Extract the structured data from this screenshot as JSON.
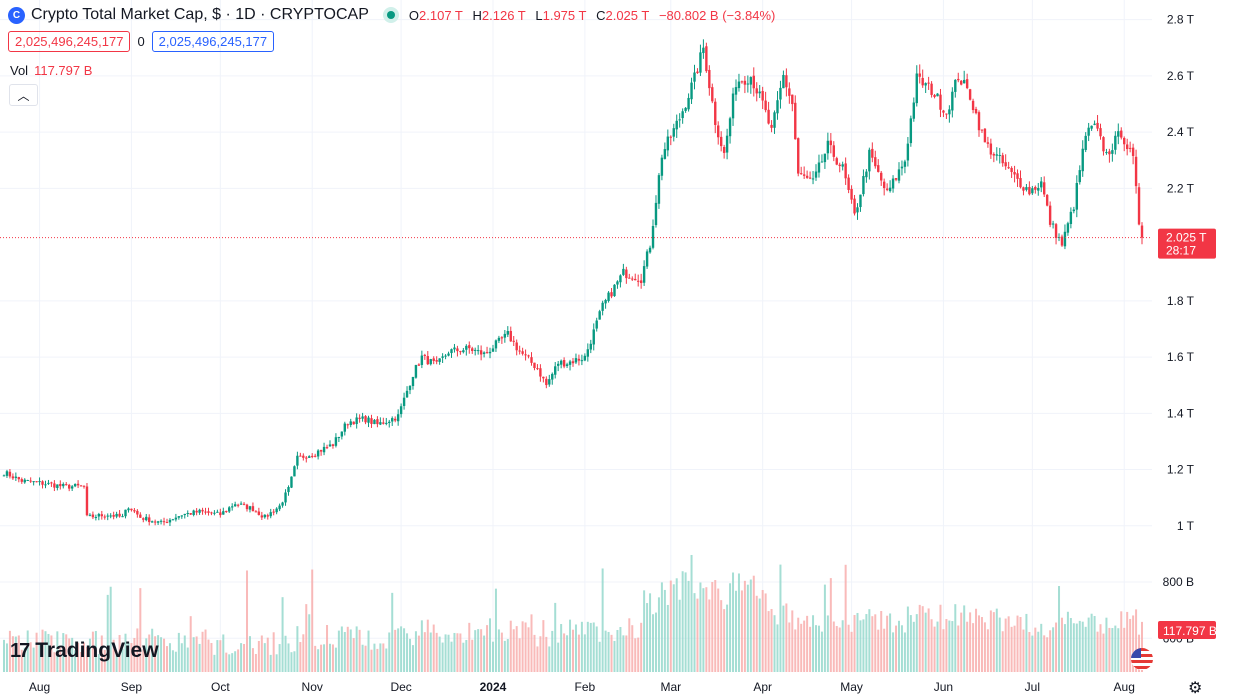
{
  "header": {
    "logo_glyph": "C",
    "title": "Crypto Total Market Cap, $ · 1D · CRYPTOCAP",
    "o_label": "O",
    "o_value": "2.107 T",
    "h_label": "H",
    "h_value": "2.126 T",
    "l_label": "L",
    "l_value": "1.975 T",
    "c_label": "C",
    "c_value": "2.025 T",
    "change": "−80.802 B (−3.84%)"
  },
  "price_boxes": {
    "left": "2,025,496,245,177",
    "middle": "0",
    "right": "2,025,496,245,177"
  },
  "volume": {
    "label": "Vol",
    "value": "117.797 B"
  },
  "branding": {
    "text": "TradingView",
    "mark": "17"
  },
  "colors": {
    "up": "#089981",
    "down": "#f23645",
    "grid": "#f0f3fa",
    "text": "#131722",
    "volume_up": "#8fd6c9",
    "volume_down": "#f7a9a7"
  },
  "chart_data": {
    "type": "candlestick",
    "y_axis": {
      "unit": "T",
      "range": [
        0.48,
        2.87
      ],
      "ticks": [
        {
          "value": 2.8,
          "label": "2.8 T"
        },
        {
          "value": 2.6,
          "label": "2.6 T"
        },
        {
          "value": 2.4,
          "label": "2.4 T"
        },
        {
          "value": 2.2,
          "label": "2.2 T"
        },
        {
          "value": 1.8,
          "label": "1.8 T"
        },
        {
          "value": 1.6,
          "label": "1.6 T"
        },
        {
          "value": 1.4,
          "label": "1.4 T"
        },
        {
          "value": 1.2,
          "label": "1.2 T"
        },
        {
          "value": 1.0,
          "label": "1 T"
        },
        {
          "value": 0.8,
          "label": "800 B"
        },
        {
          "value": 0.6,
          "label": "600 B"
        }
      ]
    },
    "x_axis": {
      "labels": [
        {
          "day": 12,
          "label": "Aug",
          "bold": false
        },
        {
          "day": 43,
          "label": "Sep",
          "bold": false
        },
        {
          "day": 73,
          "label": "Oct",
          "bold": false
        },
        {
          "day": 104,
          "label": "Nov",
          "bold": false
        },
        {
          "day": 134,
          "label": "Dec",
          "bold": false
        },
        {
          "day": 165,
          "label": "2024",
          "bold": true
        },
        {
          "day": 196,
          "label": "Feb",
          "bold": false
        },
        {
          "day": 225,
          "label": "Mar",
          "bold": false
        },
        {
          "day": 256,
          "label": "Apr",
          "bold": false
        },
        {
          "day": 286,
          "label": "May",
          "bold": false
        },
        {
          "day": 317,
          "label": "Jun",
          "bold": false
        },
        {
          "day": 347,
          "label": "Jul",
          "bold": false
        },
        {
          "day": 378,
          "label": "Aug",
          "bold": false
        }
      ]
    },
    "current_price": {
      "value": 2.025,
      "label": "2.025 T",
      "countdown": "28:17"
    },
    "current_volume": {
      "label": "117.797 B"
    },
    "volume_scale": {
      "max": 0.35
    },
    "anchors": [
      [
        0,
        1.19
      ],
      [
        6,
        1.16
      ],
      [
        14,
        1.15
      ],
      [
        20,
        1.14
      ],
      [
        27,
        1.14
      ],
      [
        28,
        1.03
      ],
      [
        35,
        1.04
      ],
      [
        40,
        1.03
      ],
      [
        42,
        1.07
      ],
      [
        46,
        1.03
      ],
      [
        53,
        1.01
      ],
      [
        60,
        1.04
      ],
      [
        66,
        1.05
      ],
      [
        73,
        1.04
      ],
      [
        78,
        1.08
      ],
      [
        84,
        1.06
      ],
      [
        88,
        1.03
      ],
      [
        93,
        1.07
      ],
      [
        96,
        1.13
      ],
      [
        99,
        1.24
      ],
      [
        105,
        1.26
      ],
      [
        111,
        1.29
      ],
      [
        116,
        1.37
      ],
      [
        122,
        1.38
      ],
      [
        126,
        1.36
      ],
      [
        133,
        1.39
      ],
      [
        138,
        1.54
      ],
      [
        141,
        1.6
      ],
      [
        146,
        1.57
      ],
      [
        150,
        1.62
      ],
      [
        157,
        1.63
      ],
      [
        162,
        1.61
      ],
      [
        170,
        1.68
      ],
      [
        174,
        1.62
      ],
      [
        180,
        1.56
      ],
      [
        183,
        1.5
      ],
      [
        187,
        1.58
      ],
      [
        190,
        1.58
      ],
      [
        196,
        1.6
      ],
      [
        202,
        1.78
      ],
      [
        209,
        1.9
      ],
      [
        215,
        1.88
      ],
      [
        218,
        2.0
      ],
      [
        222,
        2.32
      ],
      [
        228,
        2.45
      ],
      [
        233,
        2.59
      ],
      [
        236,
        2.7
      ],
      [
        240,
        2.44
      ],
      [
        243,
        2.32
      ],
      [
        247,
        2.58
      ],
      [
        252,
        2.6
      ],
      [
        256,
        2.5
      ],
      [
        259,
        2.4
      ],
      [
        263,
        2.6
      ],
      [
        266,
        2.5
      ],
      [
        268,
        2.25
      ],
      [
        273,
        2.22
      ],
      [
        278,
        2.35
      ],
      [
        283,
        2.27
      ],
      [
        287,
        2.1
      ],
      [
        292,
        2.32
      ],
      [
        298,
        2.18
      ],
      [
        304,
        2.3
      ],
      [
        308,
        2.59
      ],
      [
        313,
        2.55
      ],
      [
        318,
        2.47
      ],
      [
        322,
        2.6
      ],
      [
        326,
        2.53
      ],
      [
        331,
        2.36
      ],
      [
        336,
        2.3
      ],
      [
        340,
        2.25
      ],
      [
        346,
        2.19
      ],
      [
        350,
        2.22
      ],
      [
        353,
        2.08
      ],
      [
        357,
        2.0
      ],
      [
        361,
        2.14
      ],
      [
        365,
        2.39
      ],
      [
        368,
        2.42
      ],
      [
        372,
        2.32
      ],
      [
        377,
        2.4
      ],
      [
        381,
        2.3
      ],
      [
        383,
        2.08
      ],
      [
        384,
        2.025
      ]
    ]
  }
}
